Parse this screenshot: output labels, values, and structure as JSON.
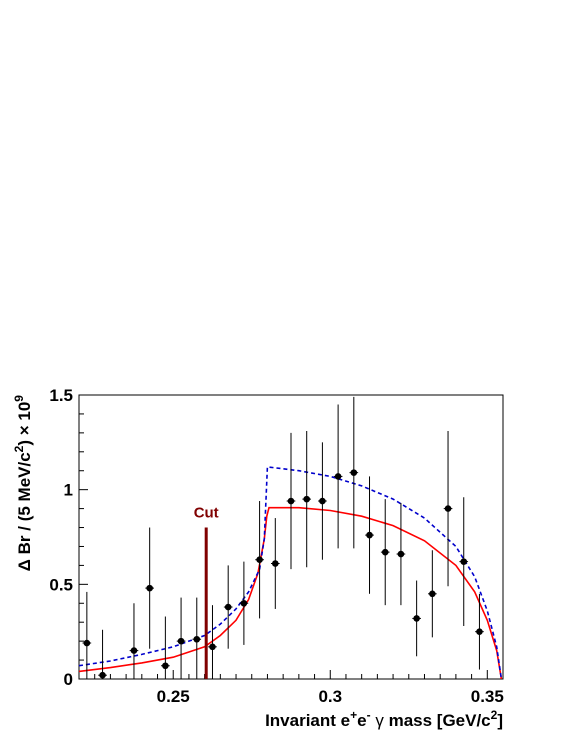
{
  "chart_data": {
    "type": "scatter",
    "title": "",
    "xlabel": {
      "main": "Invariant e",
      "sup1": "+",
      "mid": "e",
      "sup2": "-",
      "gamma": "γ",
      "tail": "mass  [GeV/c",
      "sup3": "2",
      "end": "]"
    },
    "ylabel": {
      "main": "Δ Br / (5 MeV/c",
      "sup1": "2",
      "mid": ") × 10",
      "sup2": "9"
    },
    "xlim": [
      0.22,
      0.355
    ],
    "ylim": [
      0,
      1.5
    ],
    "x_ticks": [
      {
        "value": 0.25,
        "label": "0.25"
      },
      {
        "value": 0.3,
        "label": "0.3"
      },
      {
        "value": 0.35,
        "label": "0.35"
      }
    ],
    "y_ticks": [
      {
        "value": 0,
        "label": "0"
      },
      {
        "value": 0.5,
        "label": "0.5"
      },
      {
        "value": 1.0,
        "label": "1"
      },
      {
        "value": 1.5,
        "label": "1.5"
      }
    ],
    "grid": false,
    "legend": "none",
    "colors": {
      "data": "#000000",
      "solid_curve": "#ff0000",
      "dashed_curve": "#0000cc",
      "cut_line": "#800000"
    },
    "data_points": [
      {
        "x": 0.2225,
        "y": 0.19,
        "err": 0.27
      },
      {
        "x": 0.2275,
        "y": 0.02,
        "err": 0.24
      },
      {
        "x": 0.2375,
        "y": 0.15,
        "err": 0.25
      },
      {
        "x": 0.2425,
        "y": 0.48,
        "err": 0.32
      },
      {
        "x": 0.2475,
        "y": 0.07,
        "err": 0.26
      },
      {
        "x": 0.2525,
        "y": 0.2,
        "err": 0.23
      },
      {
        "x": 0.2575,
        "y": 0.21,
        "err": 0.22
      },
      {
        "x": 0.2625,
        "y": 0.17,
        "err": 0.22
      },
      {
        "x": 0.2675,
        "y": 0.38,
        "err": 0.22
      },
      {
        "x": 0.2725,
        "y": 0.4,
        "err": 0.22
      },
      {
        "x": 0.2775,
        "y": 0.63,
        "err": 0.31
      },
      {
        "x": 0.2825,
        "y": 0.61,
        "err": 0.24
      },
      {
        "x": 0.2875,
        "y": 0.94,
        "err": 0.36
      },
      {
        "x": 0.2925,
        "y": 0.95,
        "err": 0.36
      },
      {
        "x": 0.2975,
        "y": 0.94,
        "err": 0.31
      },
      {
        "x": 0.3025,
        "y": 1.07,
        "err": 0.38
      },
      {
        "x": 0.3075,
        "y": 1.09,
        "err": 0.4
      },
      {
        "x": 0.3125,
        "y": 0.76,
        "err": 0.31
      },
      {
        "x": 0.3175,
        "y": 0.67,
        "err": 0.28
      },
      {
        "x": 0.3225,
        "y": 0.66,
        "err": 0.27
      },
      {
        "x": 0.3275,
        "y": 0.32,
        "err": 0.2
      },
      {
        "x": 0.3325,
        "y": 0.45,
        "err": 0.23
      },
      {
        "x": 0.3375,
        "y": 0.9,
        "err": 0.41
      },
      {
        "x": 0.3425,
        "y": 0.62,
        "err": 0.34
      },
      {
        "x": 0.3475,
        "y": 0.25,
        "err": 0.2
      }
    ],
    "curves": [
      {
        "style": "solid",
        "points": [
          [
            0.22,
            0.04
          ],
          [
            0.23,
            0.06
          ],
          [
            0.24,
            0.085
          ],
          [
            0.25,
            0.115
          ],
          [
            0.26,
            0.17
          ],
          [
            0.265,
            0.23
          ],
          [
            0.27,
            0.31
          ],
          [
            0.274,
            0.42
          ],
          [
            0.277,
            0.56
          ],
          [
            0.279,
            0.74
          ],
          [
            0.2798,
            0.86
          ],
          [
            0.2805,
            0.905
          ],
          [
            0.29,
            0.905
          ],
          [
            0.3,
            0.89
          ],
          [
            0.31,
            0.86
          ],
          [
            0.32,
            0.81
          ],
          [
            0.33,
            0.73
          ],
          [
            0.34,
            0.6
          ],
          [
            0.346,
            0.46
          ],
          [
            0.35,
            0.31
          ],
          [
            0.353,
            0.15
          ],
          [
            0.3545,
            0.0
          ]
        ]
      },
      {
        "style": "dashed",
        "points": [
          [
            0.22,
            0.07
          ],
          [
            0.23,
            0.095
          ],
          [
            0.24,
            0.13
          ],
          [
            0.25,
            0.17
          ],
          [
            0.26,
            0.23
          ],
          [
            0.265,
            0.29
          ],
          [
            0.27,
            0.37
          ],
          [
            0.274,
            0.46
          ],
          [
            0.2775,
            0.58
          ],
          [
            0.279,
            0.74
          ],
          [
            0.28,
            1.12
          ],
          [
            0.29,
            1.1
          ],
          [
            0.3,
            1.07
          ],
          [
            0.31,
            1.02
          ],
          [
            0.32,
            0.95
          ],
          [
            0.33,
            0.85
          ],
          [
            0.34,
            0.7
          ],
          [
            0.346,
            0.54
          ],
          [
            0.35,
            0.36
          ],
          [
            0.353,
            0.17
          ],
          [
            0.3545,
            0.0
          ]
        ]
      }
    ],
    "cut": {
      "x": 0.2605,
      "ymax": 0.8,
      "label": "Cut"
    }
  }
}
